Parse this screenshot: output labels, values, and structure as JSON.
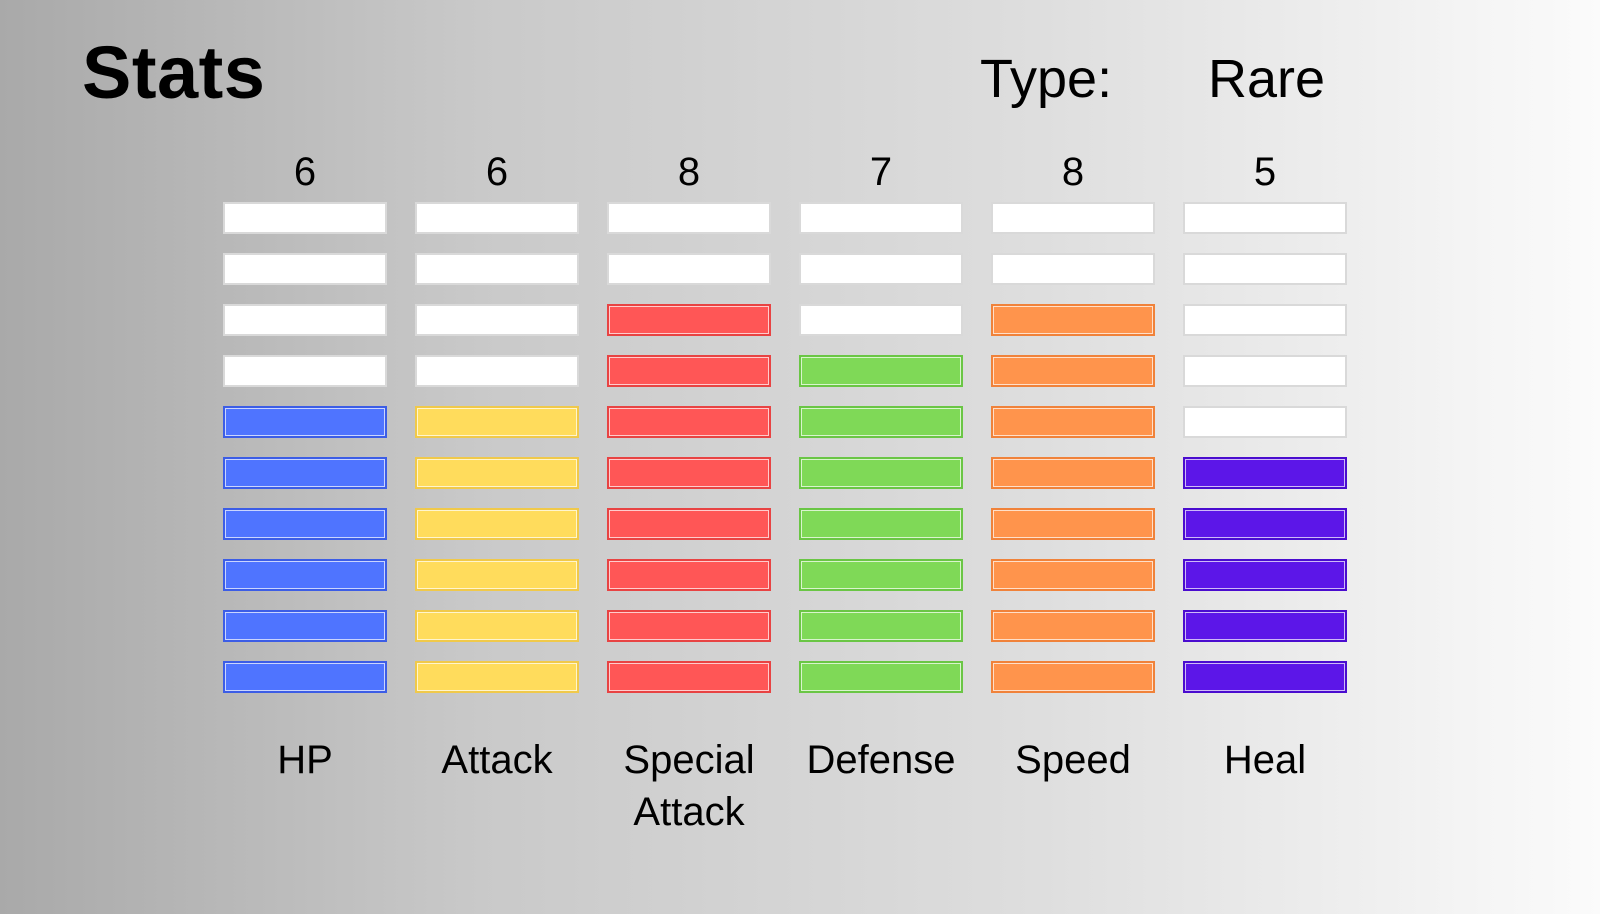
{
  "header": {
    "title": "Stats",
    "type_label": "Type:",
    "type_value": "Rare"
  },
  "max_level": 10,
  "stats": [
    {
      "name": "HP",
      "value": "6",
      "level": 6,
      "color": "#4f74ff",
      "border": "#3c5de6"
    },
    {
      "name": "Attack",
      "value": "6",
      "level": 6,
      "color": "#ffdc5c",
      "border": "#f0c94a"
    },
    {
      "name": "Special Attack",
      "value": "8",
      "level": 8,
      "color": "#ff5656",
      "border": "#e84343"
    },
    {
      "name": "Defense",
      "value": "7",
      "level": 7,
      "color": "#7fd957",
      "border": "#6ac645"
    },
    {
      "name": "Speed",
      "value": "8",
      "level": 8,
      "color": "#ff944c",
      "border": "#f0823a"
    },
    {
      "name": "Heal",
      "value": "5",
      "level": 5,
      "color": "#5c16e8",
      "border": "#4a0ccf"
    }
  ]
}
